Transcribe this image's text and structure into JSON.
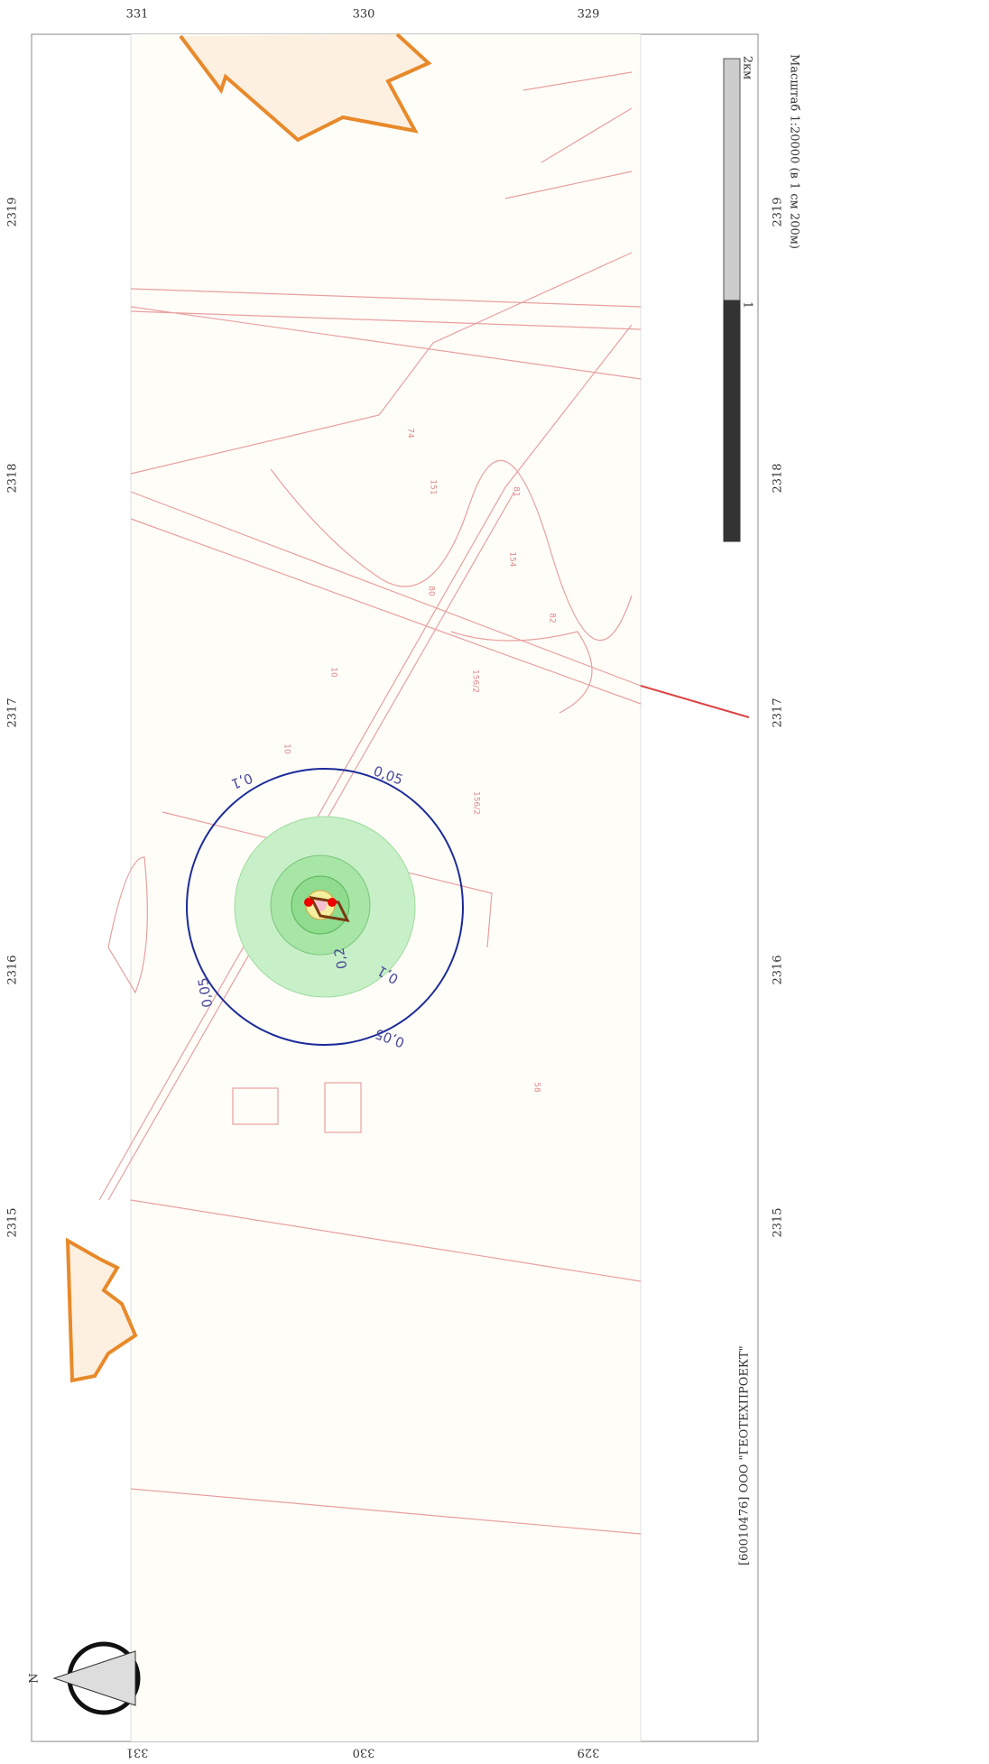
{
  "top_axis": [
    "331",
    "330",
    "329"
  ],
  "bottom_axis": [
    "331",
    "330",
    "329"
  ],
  "left_axis": [
    "2319",
    "2318",
    "2317",
    "2316",
    "2315"
  ],
  "right_axis": [
    "2319",
    "2318",
    "2317",
    "2316",
    "2315"
  ],
  "contour_labels": [
    "0,05",
    "0,05",
    "0,05",
    "0,1",
    "0,1",
    "0,2"
  ],
  "scale_bar": {
    "mid": "1",
    "end": "2км"
  },
  "caption": "Масштаб 1:20000 (в 1 см 200м)",
  "credit": "[60010476] ООО \"ГЕОТЕХПРОЕКТ\"",
  "parcel_labels": [
    "74",
    "81",
    "82",
    "80",
    "151",
    "154",
    "156/2",
    "156/2",
    "10",
    "10",
    "58"
  ],
  "compass": "N"
}
